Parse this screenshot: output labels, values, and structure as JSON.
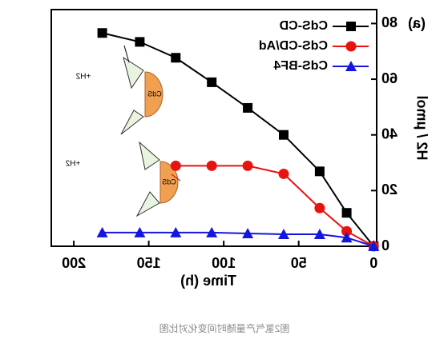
{
  "chart_data": {
    "type": "line",
    "panel_label": "(a)",
    "x_label": "Time (h)",
    "y_label": "H2 / μmol",
    "xlim": [
      -2,
      215
    ],
    "xticks": [
      0,
      50,
      100,
      150,
      200
    ],
    "ylim": [
      0,
      85
    ],
    "yticks": [
      0,
      20,
      40,
      60,
      80
    ],
    "legend": "upper left",
    "series": [
      {
        "name": "CdS-CD",
        "color": "#000000",
        "marker": "square",
        "x": [
          0,
          18,
          36,
          60,
          84,
          108,
          132,
          156,
          181
        ],
        "values": [
          0,
          12,
          26.9,
          40,
          49.7,
          58.9,
          67.7,
          73.4,
          76.6
        ]
      },
      {
        "name": "CdS-CD/Ad",
        "color": "#e8120f",
        "marker": "circle",
        "x": [
          0,
          18,
          36,
          60,
          84,
          108,
          132
        ],
        "values": [
          0,
          5.4,
          13.7,
          26,
          28.9,
          28.9,
          28.9
        ]
      },
      {
        "name": "CdS-BF4",
        "color": "#1515e0",
        "marker": "triangle",
        "x": [
          0,
          18,
          36,
          60,
          84,
          108,
          132,
          156,
          181
        ],
        "values": [
          0,
          3.1,
          4.3,
          4.3,
          4.6,
          4.9,
          4.9,
          4.9,
          4.9
        ]
      }
    ],
    "illustration": {
      "particle": "CdS",
      "product": "+H2"
    },
    "caption": "图2氢气产量随时间变化对比图"
  }
}
